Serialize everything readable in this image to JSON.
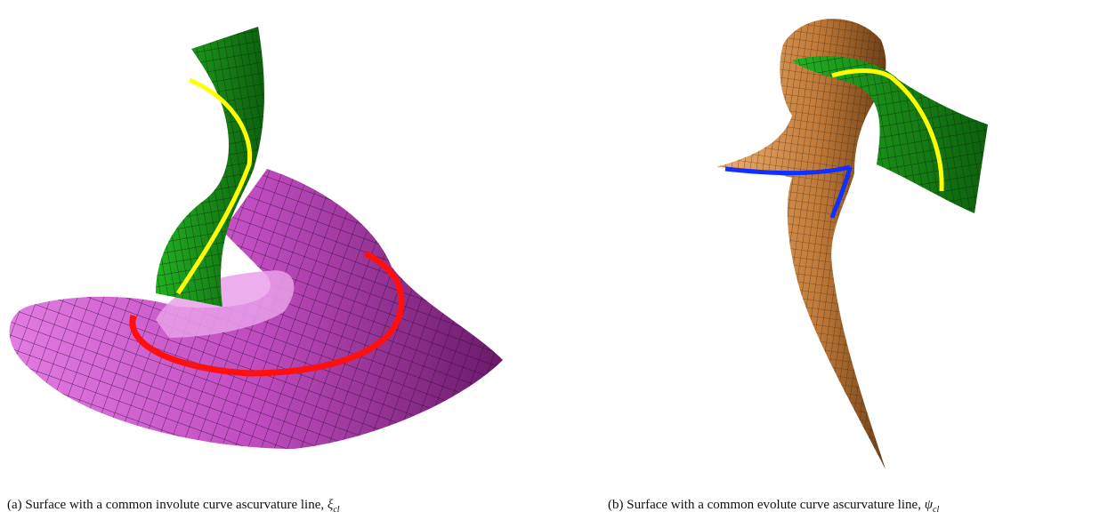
{
  "figure": {
    "panels": [
      {
        "label": "(a)",
        "caption": "Surface with a common involute curve ascurvature line,",
        "symbol": "ξ",
        "subscript": "cl"
      },
      {
        "label": "(b)",
        "caption": "Surface with a common evolute curve ascurvature line,",
        "symbol": "ψ",
        "subscript": "cl"
      }
    ]
  }
}
